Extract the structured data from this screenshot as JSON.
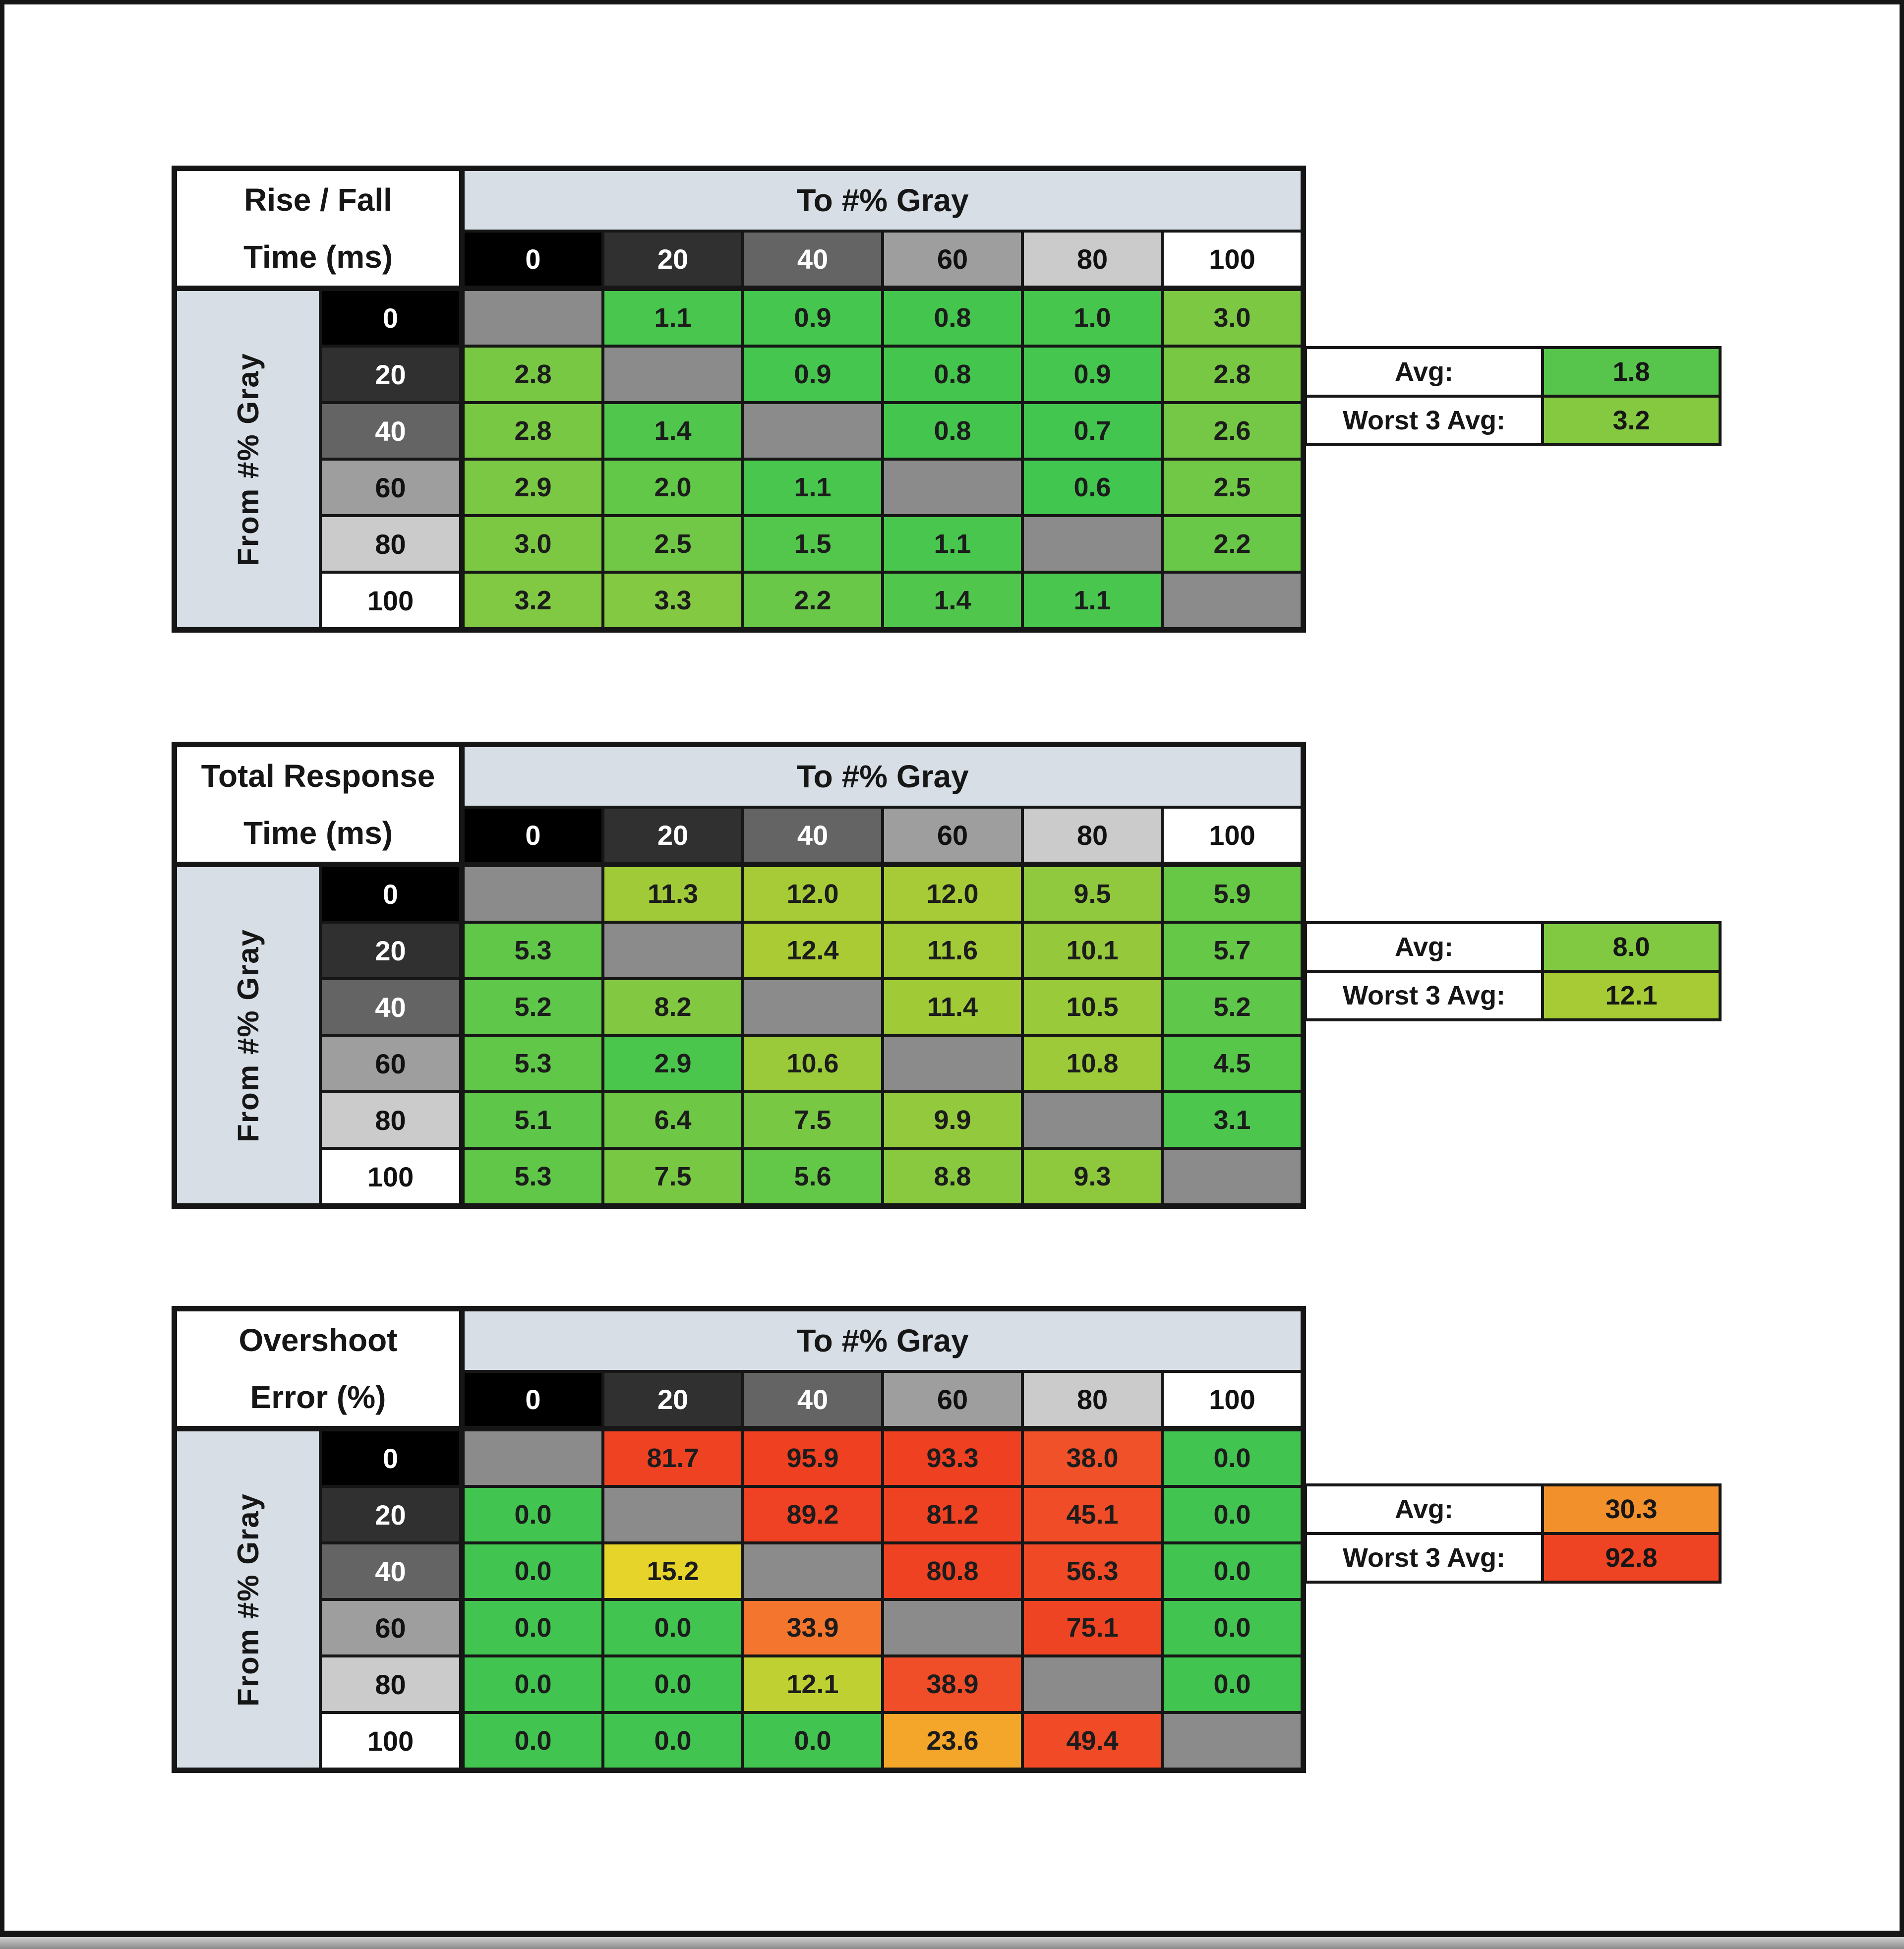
{
  "window": {
    "frame_color": "#161616"
  },
  "band_label": "To #% Gray",
  "side_label": "From #% Gray",
  "band_bg": "#D7DEE5",
  "diag_bg": "#8B8B8B",
  "gray_levels": [
    {
      "label": "0",
      "bg": "#000000",
      "fg": "#FFFFFF"
    },
    {
      "label": "20",
      "bg": "#303030",
      "fg": "#FFFFFF"
    },
    {
      "label": "40",
      "bg": "#646464",
      "fg": "#FFFFFF"
    },
    {
      "label": "60",
      "bg": "#9E9E9E",
      "fg": "#111111"
    },
    {
      "label": "80",
      "bg": "#CBCBCB",
      "fg": "#111111"
    },
    {
      "label": "100",
      "bg": "#FFFFFF",
      "fg": "#111111"
    }
  ],
  "tables": [
    {
      "title_line1": "Rise / Fall",
      "title_line2": "Time (ms)",
      "avg_label": "Avg:",
      "avg_value": "1.8",
      "avg_color": "#57C54B",
      "worst_label": "Worst 3 Avg:",
      "worst_value": "3.2",
      "worst_color": "#85C941",
      "cells": [
        [
          null,
          {
            "v": "1.1",
            "c": "#48C64D"
          },
          {
            "v": "0.9",
            "c": "#45C64E"
          },
          {
            "v": "0.8",
            "c": "#44C64E"
          },
          {
            "v": "1.0",
            "c": "#47C64D"
          },
          {
            "v": "3.0",
            "c": "#7DC843"
          }
        ],
        [
          {
            "v": "2.8",
            "c": "#79C844"
          },
          null,
          {
            "v": "0.9",
            "c": "#45C64E"
          },
          {
            "v": "0.8",
            "c": "#44C64E"
          },
          {
            "v": "0.9",
            "c": "#45C64E"
          },
          {
            "v": "2.8",
            "c": "#79C844"
          }
        ],
        [
          {
            "v": "2.8",
            "c": "#79C844"
          },
          {
            "v": "1.4",
            "c": "#50C74C"
          },
          null,
          {
            "v": "0.8",
            "c": "#44C64E"
          },
          {
            "v": "0.7",
            "c": "#43C64F"
          },
          {
            "v": "2.6",
            "c": "#74C845"
          }
        ],
        [
          {
            "v": "2.9",
            "c": "#7BC844"
          },
          {
            "v": "2.0",
            "c": "#62C848"
          },
          {
            "v": "1.1",
            "c": "#48C64D"
          },
          null,
          {
            "v": "0.6",
            "c": "#41C64F"
          },
          {
            "v": "2.5",
            "c": "#71C846"
          }
        ],
        [
          {
            "v": "3.0",
            "c": "#7DC843"
          },
          {
            "v": "2.5",
            "c": "#71C846"
          },
          {
            "v": "1.5",
            "c": "#53C74B"
          },
          {
            "v": "1.1",
            "c": "#48C64D"
          },
          null,
          {
            "v": "2.2",
            "c": "#69C847"
          }
        ],
        [
          {
            "v": "3.2",
            "c": "#81C943"
          },
          {
            "v": "3.3",
            "c": "#83C942"
          },
          {
            "v": "2.2",
            "c": "#69C847"
          },
          {
            "v": "1.4",
            "c": "#50C74C"
          },
          {
            "v": "1.1",
            "c": "#48C64D"
          },
          null
        ]
      ]
    },
    {
      "title_line1": "Total Response",
      "title_line2": "Time (ms)",
      "avg_label": "Avg:",
      "avg_value": "8.0",
      "avg_color": "#80C941",
      "worst_label": "Worst 3 Avg:",
      "worst_value": "12.1",
      "worst_color": "#A7CB35",
      "cells": [
        [
          null,
          {
            "v": "11.3",
            "c": "#A0CA38"
          },
          {
            "v": "12.0",
            "c": "#A6CB36"
          },
          {
            "v": "12.0",
            "c": "#A6CB36"
          },
          {
            "v": "9.5",
            "c": "#90C93D"
          },
          {
            "v": "5.9",
            "c": "#67C846"
          }
        ],
        [
          {
            "v": "5.3",
            "c": "#60C748"
          },
          null,
          {
            "v": "12.4",
            "c": "#AACB34"
          },
          {
            "v": "11.6",
            "c": "#A3CA37"
          },
          {
            "v": "10.1",
            "c": "#95C93B"
          },
          {
            "v": "5.7",
            "c": "#65C847"
          }
        ],
        [
          {
            "v": "5.2",
            "c": "#5FC749"
          },
          {
            "v": "8.2",
            "c": "#82C941"
          },
          null,
          {
            "v": "11.4",
            "c": "#A1CA37"
          },
          {
            "v": "10.5",
            "c": "#99CA3A"
          },
          {
            "v": "5.2",
            "c": "#5FC749"
          }
        ],
        [
          {
            "v": "5.3",
            "c": "#60C748"
          },
          {
            "v": "2.9",
            "c": "#4AC64D"
          },
          {
            "v": "10.6",
            "c": "#9ACA39"
          },
          null,
          {
            "v": "10.8",
            "c": "#9CCA38"
          },
          {
            "v": "4.5",
            "c": "#57C74A"
          }
        ],
        [
          {
            "v": "5.1",
            "c": "#5EC749"
          },
          {
            "v": "6.4",
            "c": "#6EC846"
          },
          {
            "v": "7.5",
            "c": "#79C843"
          },
          {
            "v": "9.9",
            "c": "#93C93C"
          },
          null,
          {
            "v": "3.1",
            "c": "#4CC64C"
          }
        ],
        [
          {
            "v": "5.3",
            "c": "#60C748"
          },
          {
            "v": "7.5",
            "c": "#79C843"
          },
          {
            "v": "5.6",
            "c": "#63C847"
          },
          {
            "v": "8.8",
            "c": "#89C93F"
          },
          {
            "v": "9.3",
            "c": "#8EC93D"
          },
          null
        ]
      ]
    },
    {
      "title_line1": "Overshoot",
      "title_line2": "Error (%)",
      "avg_label": "Avg:",
      "avg_value": "30.3",
      "avg_color": "#F2902C",
      "worst_label": "Worst 3 Avg:",
      "worst_value": "92.8",
      "worst_color": "#EF4423",
      "cells": [
        [
          null,
          {
            "v": "81.7",
            "c": "#EF4223"
          },
          {
            "v": "95.9",
            "c": "#EF4022"
          },
          {
            "v": "93.3",
            "c": "#EF4022"
          },
          {
            "v": "38.0",
            "c": "#F05129"
          },
          {
            "v": "0.0",
            "c": "#42C450"
          }
        ],
        [
          {
            "v": "0.0",
            "c": "#42C450"
          },
          null,
          {
            "v": "89.2",
            "c": "#EF4123"
          },
          {
            "v": "81.2",
            "c": "#EF4223"
          },
          {
            "v": "45.1",
            "c": "#F04C27"
          },
          {
            "v": "0.0",
            "c": "#42C450"
          }
        ],
        [
          {
            "v": "0.0",
            "c": "#42C450"
          },
          {
            "v": "15.2",
            "c": "#E6D42A"
          },
          null,
          {
            "v": "80.8",
            "c": "#EF4223"
          },
          {
            "v": "56.3",
            "c": "#F04926"
          },
          {
            "v": "0.0",
            "c": "#42C450"
          }
        ],
        [
          {
            "v": "0.0",
            "c": "#42C450"
          },
          {
            "v": "0.0",
            "c": "#42C450"
          },
          {
            "v": "33.9",
            "c": "#F3752E"
          },
          null,
          {
            "v": "75.1",
            "c": "#EF4424"
          },
          {
            "v": "0.0",
            "c": "#42C450"
          }
        ],
        [
          {
            "v": "0.0",
            "c": "#42C450"
          },
          {
            "v": "0.0",
            "c": "#42C450"
          },
          {
            "v": "12.1",
            "c": "#BFD033"
          },
          {
            "v": "38.9",
            "c": "#F04E28"
          },
          null,
          {
            "v": "0.0",
            "c": "#42C450"
          }
        ],
        [
          {
            "v": "0.0",
            "c": "#42C450"
          },
          {
            "v": "0.0",
            "c": "#42C450"
          },
          {
            "v": "0.0",
            "c": "#42C450"
          },
          {
            "v": "23.6",
            "c": "#F3A629"
          },
          {
            "v": "49.4",
            "c": "#F04A27"
          },
          null
        ]
      ]
    }
  ],
  "chart_data": [
    {
      "type": "heatmap",
      "title": "Rise / Fall Time (ms)",
      "xlabel": "To #% Gray",
      "ylabel": "From #% Gray",
      "x": [
        0,
        20,
        40,
        60,
        80,
        100
      ],
      "y": [
        0,
        20,
        40,
        60,
        80,
        100
      ],
      "values": [
        [
          null,
          1.1,
          0.9,
          0.8,
          1.0,
          3.0
        ],
        [
          2.8,
          null,
          0.9,
          0.8,
          0.9,
          2.8
        ],
        [
          2.8,
          1.4,
          null,
          0.8,
          0.7,
          2.6
        ],
        [
          2.9,
          2.0,
          1.1,
          null,
          0.6,
          2.5
        ],
        [
          3.0,
          2.5,
          1.5,
          1.1,
          null,
          2.2
        ],
        [
          3.2,
          3.3,
          2.2,
          1.4,
          1.1,
          null
        ]
      ],
      "avg": 1.8,
      "worst3_avg": 3.2
    },
    {
      "type": "heatmap",
      "title": "Total Response Time (ms)",
      "xlabel": "To #% Gray",
      "ylabel": "From #% Gray",
      "x": [
        0,
        20,
        40,
        60,
        80,
        100
      ],
      "y": [
        0,
        20,
        40,
        60,
        80,
        100
      ],
      "values": [
        [
          null,
          11.3,
          12.0,
          12.0,
          9.5,
          5.9
        ],
        [
          5.3,
          null,
          12.4,
          11.6,
          10.1,
          5.7
        ],
        [
          5.2,
          8.2,
          null,
          11.4,
          10.5,
          5.2
        ],
        [
          5.3,
          2.9,
          10.6,
          null,
          10.8,
          4.5
        ],
        [
          5.1,
          6.4,
          7.5,
          9.9,
          null,
          3.1
        ],
        [
          5.3,
          7.5,
          5.6,
          8.8,
          9.3,
          null
        ]
      ],
      "avg": 8.0,
      "worst3_avg": 12.1
    },
    {
      "type": "heatmap",
      "title": "Overshoot Error (%)",
      "xlabel": "To #% Gray",
      "ylabel": "From #% Gray",
      "x": [
        0,
        20,
        40,
        60,
        80,
        100
      ],
      "y": [
        0,
        20,
        40,
        60,
        80,
        100
      ],
      "values": [
        [
          null,
          81.7,
          95.9,
          93.3,
          38.0,
          0.0
        ],
        [
          0.0,
          null,
          89.2,
          81.2,
          45.1,
          0.0
        ],
        [
          0.0,
          15.2,
          null,
          80.8,
          56.3,
          0.0
        ],
        [
          0.0,
          0.0,
          33.9,
          null,
          75.1,
          0.0
        ],
        [
          0.0,
          0.0,
          12.1,
          38.9,
          null,
          0.0
        ],
        [
          0.0,
          0.0,
          0.0,
          23.6,
          49.4,
          null
        ]
      ],
      "avg": 30.3,
      "worst3_avg": 92.8
    }
  ]
}
